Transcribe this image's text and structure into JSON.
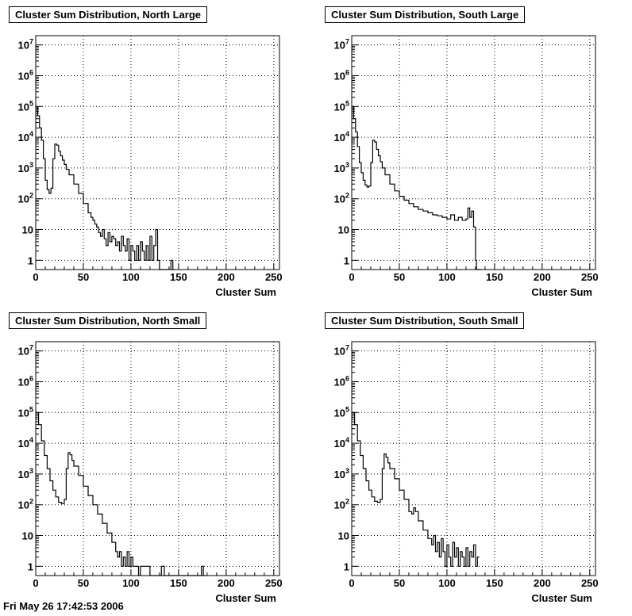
{
  "canvas": {
    "footer_text": "Fri May 26 17:42:53 2006"
  },
  "chart_data": [
    {
      "type": "line",
      "title": "Cluster Sum Distribution, North Large",
      "xlabel": "Cluster Sum",
      "ylabel": "",
      "xlim": [
        0,
        256
      ],
      "ylim": [
        0.5,
        20000000
      ],
      "yscale": "log",
      "grid": true,
      "xticks": [
        "0",
        "50",
        "100",
        "150",
        "200",
        "250"
      ],
      "yticks": [
        "1",
        "10",
        "10^2",
        "10^3",
        "10^4",
        "10^5",
        "10^6",
        "10^7"
      ],
      "series": [
        {
          "x": [
            0,
            2,
            4,
            6,
            8,
            10,
            12,
            14,
            16,
            18,
            20,
            22,
            24,
            26,
            28,
            30,
            32,
            35,
            40,
            45,
            50,
            55,
            58,
            60,
            62,
            64,
            66,
            68,
            70,
            72,
            74,
            76,
            78,
            80,
            82,
            84,
            86,
            88,
            90,
            92,
            94,
            96,
            98,
            100,
            102,
            104,
            106,
            108,
            110,
            112,
            114,
            116,
            118,
            120,
            122,
            124,
            126,
            128,
            130,
            135,
            140,
            142,
            144
          ],
          "y": [
            100000,
            50000,
            20000,
            8000,
            2000,
            400,
            200,
            150,
            220,
            2000,
            6000,
            5500,
            3500,
            2500,
            1800,
            1300,
            900,
            600,
            300,
            150,
            70,
            35,
            25,
            20,
            15,
            12,
            8,
            6,
            10,
            5,
            3,
            8,
            4,
            6,
            5,
            3,
            4,
            2,
            6,
            3,
            2,
            5,
            1,
            3,
            2,
            1,
            3,
            1,
            4,
            2,
            1,
            3,
            1,
            6,
            1,
            3,
            10,
            1,
            0,
            0,
            0,
            1,
            0
          ]
        }
      ]
    },
    {
      "type": "line",
      "title": "Cluster Sum Distribution, South Large",
      "xlabel": "Cluster Sum",
      "ylabel": "",
      "xlim": [
        0,
        256
      ],
      "ylim": [
        0.5,
        20000000
      ],
      "yscale": "log",
      "grid": true,
      "xticks": [
        "0",
        "50",
        "100",
        "150",
        "200",
        "250"
      ],
      "yticks": [
        "1",
        "10",
        "10^2",
        "10^3",
        "10^4",
        "10^5",
        "10^6",
        "10^7"
      ],
      "series": [
        {
          "x": [
            0,
            2,
            4,
            6,
            8,
            10,
            12,
            14,
            16,
            18,
            20,
            22,
            24,
            26,
            28,
            30,
            32,
            35,
            40,
            45,
            50,
            55,
            60,
            65,
            70,
            75,
            80,
            85,
            90,
            95,
            100,
            104,
            108,
            112,
            116,
            120,
            122,
            124,
            126,
            128,
            130,
            131,
            132,
            134
          ],
          "y": [
            100000,
            40000,
            15000,
            5000,
            1500,
            700,
            400,
            280,
            240,
            260,
            1500,
            8000,
            7000,
            4000,
            2500,
            1600,
            1000,
            600,
            300,
            180,
            120,
            90,
            70,
            55,
            45,
            40,
            35,
            30,
            28,
            25,
            22,
            30,
            20,
            25,
            20,
            22,
            50,
            25,
            40,
            12,
            1,
            0,
            0,
            0
          ]
        }
      ]
    },
    {
      "type": "line",
      "title": "Cluster Sum Distribution, North Small",
      "xlabel": "Cluster Sum",
      "ylabel": "",
      "xlim": [
        0,
        256
      ],
      "ylim": [
        0.5,
        20000000
      ],
      "yscale": "log",
      "grid": true,
      "xticks": [
        "0",
        "50",
        "100",
        "150",
        "200",
        "250"
      ],
      "yticks": [
        "1",
        "10",
        "10^2",
        "10^3",
        "10^4",
        "10^5",
        "10^6",
        "10^7"
      ],
      "series": [
        {
          "x": [
            0,
            3,
            6,
            9,
            12,
            15,
            18,
            21,
            24,
            27,
            30,
            32,
            34,
            36,
            38,
            40,
            45,
            50,
            55,
            60,
            65,
            70,
            75,
            80,
            84,
            86,
            88,
            90,
            92,
            94,
            96,
            98,
            100,
            102,
            105,
            108,
            110,
            115,
            120,
            132,
            135,
            174,
            176
          ],
          "y": [
            100000,
            40000,
            12000,
            4000,
            1500,
            600,
            300,
            180,
            120,
            110,
            150,
            1500,
            5000,
            4200,
            2800,
            1800,
            900,
            400,
            200,
            100,
            50,
            25,
            12,
            6,
            3,
            2,
            3,
            1,
            2,
            1,
            3,
            1,
            2,
            1,
            1,
            0,
            1,
            1,
            0,
            1,
            0,
            1,
            0
          ]
        }
      ]
    },
    {
      "type": "line",
      "title": "Cluster Sum Distribution, South Small",
      "xlabel": "Cluster Sum",
      "ylabel": "",
      "xlim": [
        0,
        256
      ],
      "ylim": [
        0.5,
        20000000
      ],
      "yscale": "log",
      "grid": true,
      "xticks": [
        "0",
        "50",
        "100",
        "150",
        "200",
        "250"
      ],
      "yticks": [
        "1",
        "10",
        "10^2",
        "10^3",
        "10^4",
        "10^5",
        "10^6",
        "10^7"
      ],
      "series": [
        {
          "x": [
            0,
            3,
            6,
            9,
            12,
            15,
            18,
            21,
            24,
            27,
            30,
            32,
            34,
            36,
            38,
            40,
            45,
            50,
            55,
            60,
            63,
            65,
            67,
            70,
            75,
            80,
            84,
            86,
            88,
            90,
            92,
            94,
            96,
            98,
            100,
            102,
            104,
            106,
            108,
            110,
            112,
            114,
            116,
            118,
            120,
            122,
            124,
            126,
            128,
            130,
            132
          ],
          "y": [
            100000,
            40000,
            12000,
            4000,
            1500,
            600,
            300,
            180,
            130,
            120,
            150,
            1500,
            4500,
            3500,
            2300,
            1500,
            700,
            300,
            150,
            60,
            50,
            80,
            60,
            30,
            15,
            8,
            5,
            10,
            3,
            6,
            2,
            8,
            3,
            1,
            5,
            2,
            1,
            6,
            2,
            4,
            1,
            3,
            2,
            1,
            4,
            1,
            3,
            2,
            5,
            1,
            2
          ]
        }
      ]
    }
  ]
}
